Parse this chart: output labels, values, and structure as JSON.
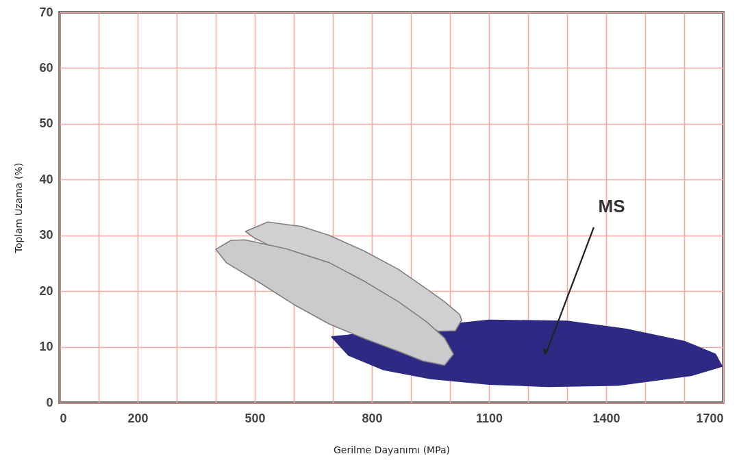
{
  "chart_data": {
    "type": "area",
    "xlabel": "Gerilme Dayanımı (MPa)",
    "ylabel": "Toplam Uzama (%)",
    "xlim": [
      0,
      1700
    ],
    "ylim": [
      0,
      70
    ],
    "xticks": [
      0,
      {
        "value": 100,
        "label": null
      },
      200,
      {
        "value": 300,
        "label": null
      },
      {
        "value": 400,
        "label": null
      },
      500,
      {
        "value": 600,
        "label": null
      },
      {
        "value": 700,
        "label": null
      },
      800,
      {
        "value": 900,
        "label": null
      },
      {
        "value": 1000,
        "label": null
      },
      1100,
      {
        "value": 1200,
        "label": null
      },
      {
        "value": 1300,
        "label": null
      },
      1400,
      {
        "value": 1500,
        "label": null
      },
      {
        "value": 1600,
        "label": null
      },
      1700
    ],
    "yticks": [
      0,
      10,
      20,
      30,
      40,
      50,
      60,
      70
    ],
    "grid": true,
    "marker": "none",
    "series": [
      {
        "color": "#2e2a84",
        "x": [
          697,
          760,
          900,
          1100,
          1300,
          1450,
          1600,
          1680,
          1697,
          1620,
          1430,
          1250,
          1100,
          950,
          830,
          740
        ],
        "values": [
          11.8,
          null,
          null,
          14.8,
          14.6,
          13.2,
          11,
          8.7,
          6.5,
          4.9,
          3.1,
          2.9,
          3.3,
          4.3,
          5.9,
          8.5
        ]
      },
      {
        "color": "#d0d0d2",
        "x": [
          476,
          533,
          620,
          691,
          780,
          868,
          940,
          986,
          1025,
          1030,
          1014,
          970,
          880,
          780,
          680,
          580,
          500
        ],
        "values": [
          30.7,
          32.4,
          31.6,
          30,
          27.2,
          23.9,
          20.4,
          18.1,
          15.8,
          14.8,
          12.9,
          12.8,
          null,
          null,
          null,
          null,
          29.5
        ]
      },
      {
        "color": "#cbcbce",
        "x": [
          400,
          439,
          474,
          580,
          691,
          780,
          868,
          940,
          986,
          1009,
          986,
          930,
          868,
          780,
          691,
          600,
          515,
          427
        ],
        "values": [
          27.5,
          29.1,
          29.2,
          27.6,
          25.1,
          21.8,
          18.1,
          14.5,
          11.6,
          8.7,
          6.7,
          7.5,
          9.2,
          11.5,
          14.1,
          17.6,
          21.4,
          25.1
        ]
      }
    ],
    "annotations": [
      "MS"
    ]
  }
}
